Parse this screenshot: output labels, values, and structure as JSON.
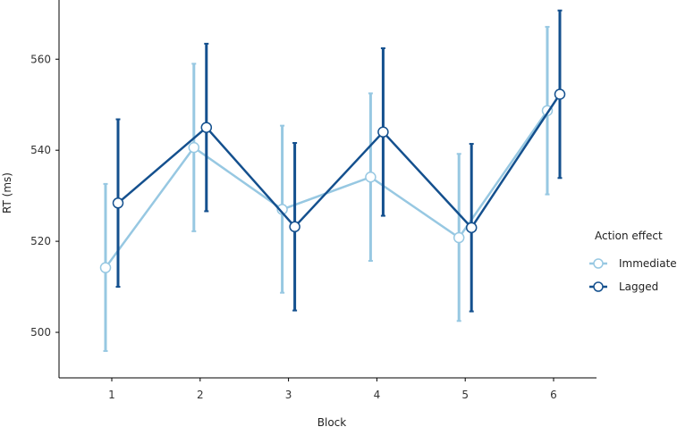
{
  "chart_data": {
    "type": "line",
    "title": "",
    "xlabel": "Block",
    "ylabel": "RT (ms)",
    "categories": [
      "1",
      "2",
      "3",
      "4",
      "5",
      "6"
    ],
    "ylim": [
      490,
      573
    ],
    "yticks": [
      500,
      520,
      540,
      560
    ],
    "grid": false,
    "error_bars": true,
    "legend": {
      "title": "Action effect",
      "position": "right"
    },
    "series": [
      {
        "name": "Immediate",
        "color": "#97c8e2",
        "values": [
          514.2,
          540.6,
          527.0,
          534.1,
          520.8,
          548.7
        ],
        "lower": [
          495.9,
          522.2,
          508.7,
          515.7,
          502.5,
          530.3
        ],
        "upper": [
          532.6,
          559.0,
          545.4,
          552.5,
          539.2,
          567.1
        ]
      },
      {
        "name": "Lagged",
        "color": "#14508e",
        "values": [
          528.4,
          545.0,
          523.2,
          544.0,
          523.0,
          552.3
        ],
        "lower": [
          510.0,
          526.6,
          504.8,
          525.6,
          504.6,
          533.9
        ],
        "upper": [
          546.8,
          563.4,
          541.6,
          562.4,
          541.4,
          570.7
        ]
      }
    ]
  }
}
